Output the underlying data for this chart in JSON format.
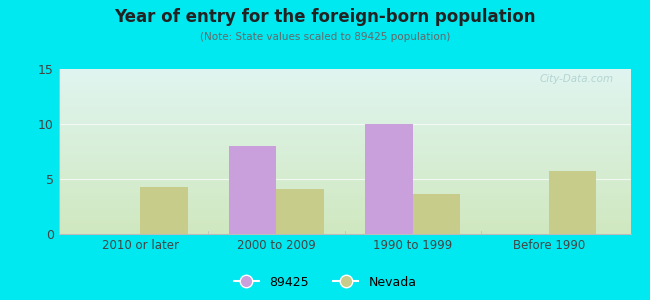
{
  "title": "Year of entry for the foreign-born population",
  "subtitle": "(Note: State values scaled to 89425 population)",
  "categories": [
    "2010 or later",
    "2000 to 2009",
    "1990 to 1999",
    "Before 1990"
  ],
  "values_89425": [
    0,
    8.0,
    10.0,
    0
  ],
  "values_nevada": [
    4.3,
    4.1,
    3.6,
    5.7
  ],
  "color_89425": "#c9a0dc",
  "color_nevada": "#c8cc8a",
  "bar_width": 0.35,
  "ylim": [
    0,
    15
  ],
  "yticks": [
    0,
    5,
    10,
    15
  ],
  "background_outer": "#00e8f0",
  "background_top": "#e0f5f0",
  "background_bottom": "#d0e8c0",
  "legend_labels": [
    "89425",
    "Nevada"
  ],
  "watermark": "City-Data.com",
  "grid_color": "#e0e8e0",
  "spine_color": "#bbbbbb"
}
